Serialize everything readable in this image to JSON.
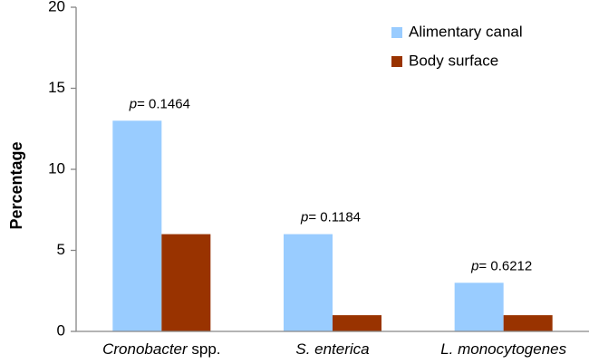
{
  "chart_data": {
    "type": "bar",
    "categories": [
      {
        "name": "Cronobacter",
        "suffix": " spp."
      },
      {
        "name": "S. enterica",
        "suffix": ""
      },
      {
        "name": "L. monocytogenes",
        "suffix": ""
      }
    ],
    "series": [
      {
        "name": "Alimentary canal",
        "color": "#99CCFF",
        "values": [
          13,
          6,
          3
        ]
      },
      {
        "name": "Body surface",
        "color": "#993300",
        "values": [
          6,
          1,
          1
        ]
      }
    ],
    "annotations": [
      {
        "prefix": "p",
        "text": "= 0.1464"
      },
      {
        "prefix": "p",
        "text": "= 0.1184"
      },
      {
        "prefix": "p",
        "text": "= 0.6212"
      }
    ],
    "title": "",
    "xlabel": "",
    "ylabel": "Percentage",
    "ylim": [
      0,
      20
    ],
    "yticks": [
      "0",
      "5",
      "10",
      "15",
      "20"
    ],
    "grid": false,
    "legend_position": "top-right"
  }
}
